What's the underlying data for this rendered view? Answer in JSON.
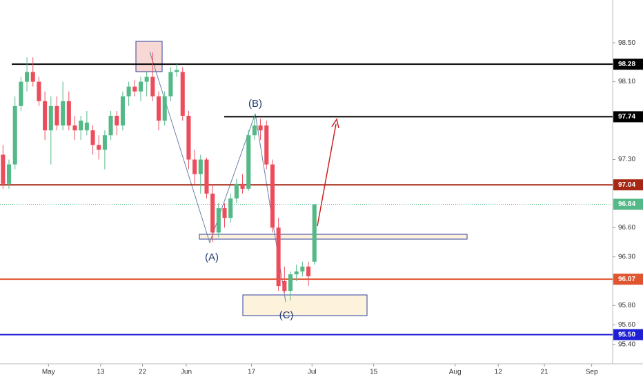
{
  "chart_data": {
    "type": "candlestick",
    "x": [
      0,
      1,
      2,
      3,
      4,
      5,
      6,
      7,
      8,
      9,
      10,
      11,
      12,
      13,
      14,
      15,
      16,
      17,
      18,
      19,
      20,
      21,
      22,
      23,
      24,
      25,
      26,
      27,
      28,
      29,
      30,
      31,
      32,
      33,
      34,
      35,
      36,
      37,
      38,
      39,
      40,
      41,
      42,
      43,
      44,
      45,
      46,
      47,
      48,
      49,
      50,
      51,
      52
    ],
    "open": [
      97.35,
      97.05,
      97.25,
      97.85,
      98.1,
      98.2,
      98.1,
      97.9,
      97.6,
      97.85,
      97.65,
      97.9,
      97.65,
      97.6,
      97.6,
      97.6,
      97.45,
      97.4,
      97.55,
      97.75,
      97.65,
      97.95,
      98.05,
      98.0,
      98.1,
      98.15,
      97.95,
      97.7,
      97.95,
      98.2,
      98.2,
      97.75,
      97.3,
      97.15,
      97.3,
      96.95,
      96.55,
      96.8,
      96.7,
      96.9,
      97.05,
      97.0,
      97.55,
      97.65,
      97.65,
      97.25,
      96.6,
      96.05,
      95.95,
      96.12,
      96.15,
      96.2,
      96.25
    ],
    "high": [
      97.45,
      97.3,
      97.95,
      98.15,
      98.35,
      98.35,
      98.15,
      98.0,
      97.95,
      97.95,
      98.1,
      98.0,
      97.75,
      97.75,
      97.8,
      97.65,
      97.55,
      97.6,
      97.8,
      97.8,
      98.0,
      98.1,
      98.12,
      98.15,
      98.2,
      98.4,
      98.0,
      98.0,
      98.25,
      98.28,
      98.25,
      97.8,
      97.4,
      97.35,
      97.32,
      97.05,
      96.85,
      96.85,
      96.95,
      97.1,
      97.15,
      97.6,
      97.75,
      97.72,
      97.7,
      97.3,
      96.7,
      96.2,
      96.15,
      96.22,
      96.25,
      96.25,
      96.84
    ],
    "low": [
      97.0,
      97.0,
      97.2,
      97.8,
      98.0,
      98.05,
      97.85,
      97.5,
      97.25,
      97.6,
      97.6,
      97.6,
      97.5,
      97.5,
      97.55,
      97.35,
      97.3,
      97.2,
      97.5,
      97.55,
      97.6,
      97.85,
      97.95,
      97.9,
      97.95,
      97.9,
      97.6,
      97.65,
      97.9,
      98.15,
      97.7,
      97.2,
      97.05,
      96.95,
      96.9,
      96.45,
      96.5,
      96.6,
      96.65,
      96.85,
      96.95,
      96.98,
      97.5,
      97.5,
      97.2,
      96.55,
      95.95,
      95.93,
      95.85,
      96.05,
      96.1,
      96.0,
      96.22
    ],
    "close": [
      97.05,
      97.25,
      97.85,
      98.1,
      98.2,
      98.1,
      97.9,
      97.6,
      97.85,
      97.65,
      97.9,
      97.65,
      97.6,
      97.7,
      97.68,
      97.45,
      97.4,
      97.55,
      97.75,
      97.65,
      97.95,
      98.05,
      98.0,
      98.1,
      98.15,
      97.95,
      97.7,
      97.95,
      98.2,
      98.22,
      97.75,
      97.3,
      97.15,
      97.3,
      96.95,
      96.55,
      96.8,
      96.7,
      96.9,
      97.05,
      97.0,
      97.55,
      97.65,
      97.6,
      97.25,
      96.6,
      96.0,
      95.95,
      96.12,
      96.15,
      96.2,
      96.1,
      96.84
    ],
    "up_color": "#53b987",
    "down_color": "#eb4d5c",
    "xlim": [
      -0.5,
      101.8
    ],
    "xticks": [
      {
        "value": 7.6,
        "label": "May"
      },
      {
        "value": 16.3,
        "label": "13"
      },
      {
        "value": 23.3,
        "label": "22"
      },
      {
        "value": 30.6,
        "label": "Jun"
      },
      {
        "value": 41.5,
        "label": "17"
      },
      {
        "value": 51.6,
        "label": "Jul"
      },
      {
        "value": 61.9,
        "label": "15"
      },
      {
        "value": 75.5,
        "label": "Aug"
      },
      {
        "value": 82.7,
        "label": "12"
      },
      {
        "value": 90.4,
        "label": "21"
      },
      {
        "value": 98.3,
        "label": "Sep"
      }
    ],
    "ylim": [
      95.2,
      98.94
    ],
    "yticks": [
      {
        "value": 98.5,
        "label": "98.50"
      },
      {
        "value": 98.1,
        "label": "98.10"
      },
      {
        "value": 97.3,
        "label": "97.30"
      },
      {
        "value": 96.6,
        "label": "96.60"
      },
      {
        "value": 96.3,
        "label": "96.30"
      },
      {
        "value": 95.8,
        "label": "95.80"
      },
      {
        "value": 95.6,
        "label": "95.60"
      },
      {
        "value": 95.4,
        "label": "95.40"
      }
    ],
    "levels": [
      {
        "value": 98.28,
        "label": "98.28",
        "color": "#000000"
      },
      {
        "value": 97.74,
        "label": "97.74",
        "color": "#000000"
      },
      {
        "value": 97.04,
        "label": "97.04",
        "color": "#a52714"
      },
      {
        "value": 96.84,
        "label": "96.84",
        "color": "#53b987"
      },
      {
        "value": 96.07,
        "label": "96.07",
        "color": "#e0542f"
      },
      {
        "value": 95.5,
        "label": "95.50",
        "color": "#1f1fd6"
      }
    ],
    "annotations": [
      "(A)",
      "(B)",
      "(C)"
    ]
  }
}
